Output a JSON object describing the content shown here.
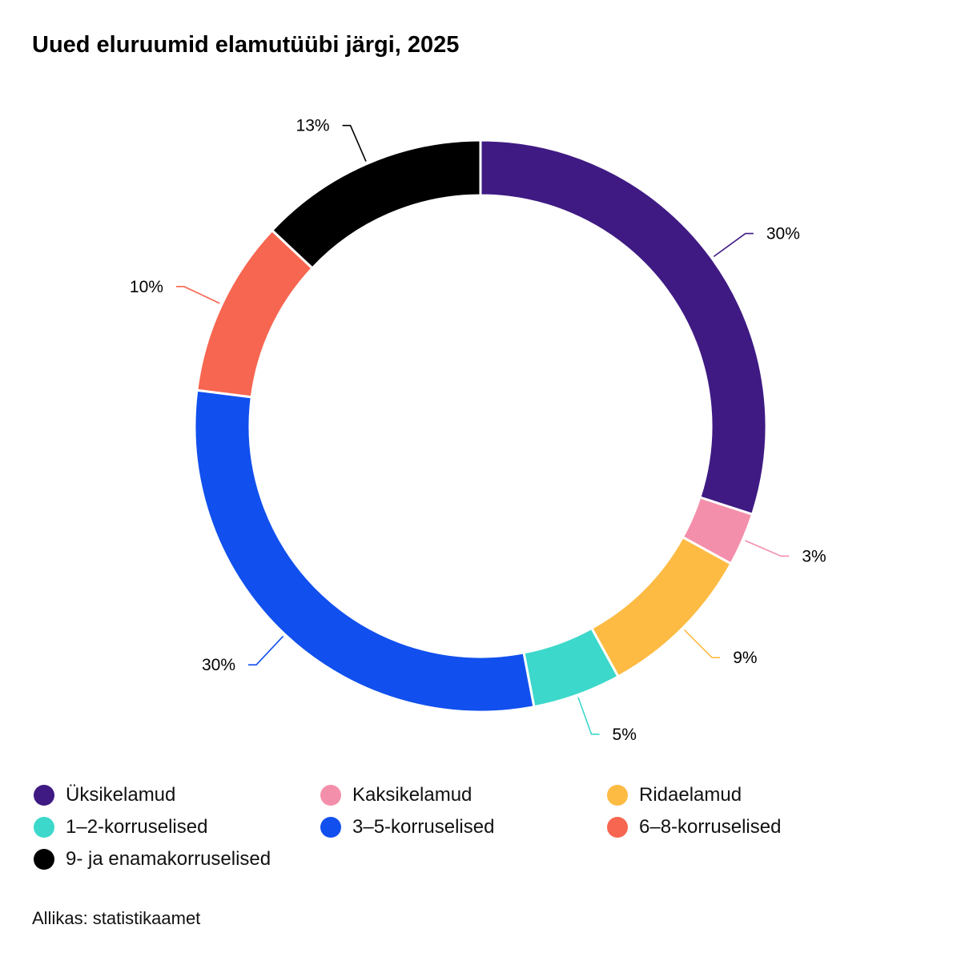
{
  "title": "Uued eluruumid elamutüübi järgi, 2025",
  "source": "Allikas: statistikaamet",
  "chart_data": {
    "type": "pie",
    "variant": "donut",
    "title": "Uued eluruumid elamutüübi järgi, 2025",
    "start": "12 o'clock, clockwise",
    "legend_position": "bottom",
    "slices": [
      {
        "name": "Üksikelamud",
        "value": 30,
        "label": "30%",
        "color": "#3F1A83"
      },
      {
        "name": "Kaksikelamud",
        "value": 3,
        "label": "3%",
        "color": "#F48FAB"
      },
      {
        "name": "Ridaelamud",
        "value": 9,
        "label": "9%",
        "color": "#FDBB43"
      },
      {
        "name": "1–2-korruselised",
        "value": 5,
        "label": "5%",
        "color": "#3CD8CB"
      },
      {
        "name": "3–5-korruselised",
        "value": 30,
        "label": "30%",
        "color": "#1150EE"
      },
      {
        "name": "6–8-korruselised",
        "value": 10,
        "label": "10%",
        "color": "#F76650"
      },
      {
        "name": "9- ja enamakorruselised",
        "value": 13,
        "label": "13%",
        "color": "#000000"
      }
    ]
  }
}
